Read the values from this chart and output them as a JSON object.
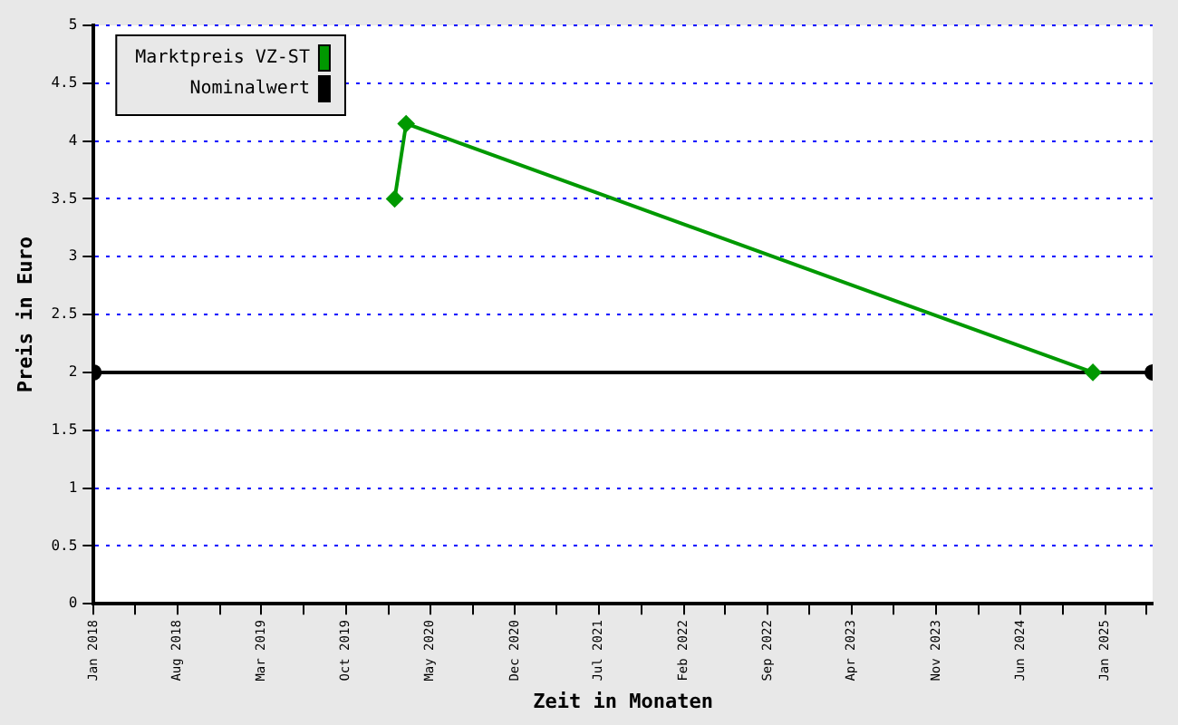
{
  "chart_data": {
    "type": "line",
    "xlabel": "Zeit in Monaten",
    "ylabel": "Preis in Euro",
    "xlim": [
      "2018-01",
      "2025-05"
    ],
    "xticks": [
      {
        "value": "2018-01",
        "label": "Jan 2018"
      },
      {
        "value": "2018-04-16",
        "label": null
      },
      {
        "value": "2018-08",
        "label": "Aug 2018"
      },
      {
        "value": "2018-11-16",
        "label": null
      },
      {
        "value": "2019-03",
        "label": "Mar 2019"
      },
      {
        "value": "2019-06-16",
        "label": null
      },
      {
        "value": "2019-10",
        "label": "Oct 2019"
      },
      {
        "value": "2020-01-16",
        "label": null
      },
      {
        "value": "2020-05",
        "label": "May 2020"
      },
      {
        "value": "2020-08-16",
        "label": null
      },
      {
        "value": "2020-12",
        "label": "Dec 2020"
      },
      {
        "value": "2021-03-16",
        "label": null
      },
      {
        "value": "2021-07",
        "label": "Jul 2021"
      },
      {
        "value": "2021-10-16",
        "label": null
      },
      {
        "value": "2022-02",
        "label": "Feb 2022"
      },
      {
        "value": "2022-05-16",
        "label": null
      },
      {
        "value": "2022-09",
        "label": "Sep 2022"
      },
      {
        "value": "2022-12-16",
        "label": null
      },
      {
        "value": "2023-04",
        "label": "Apr 2023"
      },
      {
        "value": "2023-07-16",
        "label": null
      },
      {
        "value": "2023-11",
        "label": "Nov 2023"
      },
      {
        "value": "2024-02-16",
        "label": null
      },
      {
        "value": "2024-06",
        "label": "Jun 2024"
      },
      {
        "value": "2024-09-16",
        "label": null
      },
      {
        "value": "2025-01",
        "label": "Jan 2025"
      },
      {
        "value": "2025-04-16",
        "label": null
      }
    ],
    "ylim": [
      0,
      5
    ],
    "yticks": [
      0,
      0.5,
      1,
      1.5,
      2,
      2.5,
      3,
      3.5,
      4,
      4.5,
      5
    ],
    "grid": "y",
    "legend": "top left",
    "series": [
      {
        "name": "Marktpreis VZ-ST",
        "color": "#009900",
        "marker": "diamond",
        "x": [
          "2020-02",
          "2020-03",
          "2024-12"
        ],
        "values": [
          3.5,
          4.15,
          2.0
        ]
      },
      {
        "name": "Nominalwert",
        "color": "#000000",
        "marker": "circle",
        "x": [
          "2018-01",
          "2025-05"
        ],
        "values": [
          2,
          2
        ]
      }
    ]
  }
}
